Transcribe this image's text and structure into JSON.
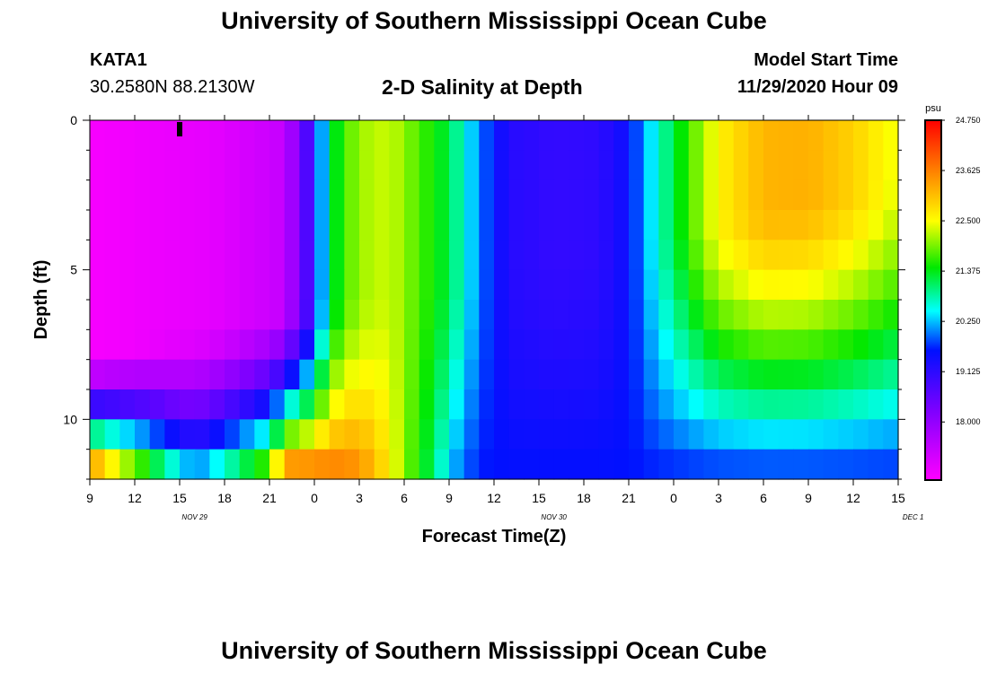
{
  "header": {
    "title": "University of Southern Mississippi Ocean Cube",
    "station": "KATA1",
    "coords": "30.2580N 88.2130W",
    "subtitle": "2-D Salinity at Depth",
    "model_start_label": "Model Start Time",
    "model_start_value": "11/29/2020 Hour 09"
  },
  "footer": {
    "title": "University of Southern Mississippi Ocean Cube"
  },
  "chart_data": {
    "type": "heatmap",
    "title": "2-D Salinity at Depth",
    "xlabel": "Forecast Time(Z)",
    "ylabel": "Depth (ft)",
    "x_ticks": [
      "9",
      "12",
      "15",
      "18",
      "21",
      "0",
      "3",
      "6",
      "9",
      "12",
      "15",
      "18",
      "21",
      "0",
      "3",
      "6",
      "9",
      "12",
      "15"
    ],
    "x_tick_hours": [
      9,
      12,
      15,
      18,
      21,
      24,
      27,
      30,
      33,
      36,
      39,
      42,
      45,
      48,
      51,
      54,
      57,
      60,
      63
    ],
    "date_labels": [
      {
        "text": "NOV 29",
        "hour": 16
      },
      {
        "text": "NOV 30",
        "hour": 40
      },
      {
        "text": "DEC 1",
        "hour": 64
      }
    ],
    "xlim_hours": [
      9,
      63
    ],
    "y_ticks": [
      "0",
      "5",
      "10"
    ],
    "y_tick_values": [
      0,
      5,
      10
    ],
    "ylim": [
      0,
      12
    ],
    "time_step_hours": 1,
    "depth_levels": [
      0.5,
      1.5,
      2.5,
      3.5,
      4.5,
      5.5,
      6.5,
      7.5,
      8.5,
      9.5,
      10.5,
      11.5
    ],
    "current_time_marker_hour": 15,
    "colorbar": {
      "unit": "psu",
      "min": 16.7,
      "max": 24.75,
      "tick_labels": [
        "24.750",
        "23.625",
        "22.500",
        "21.375",
        "20.250",
        "19.125",
        "18.000"
      ],
      "tick_values": [
        24.75,
        23.625,
        22.5,
        21.375,
        20.25,
        19.125,
        18.0
      ],
      "colors": {
        "magenta": "#ff00ff",
        "purple": "#8000ff",
        "blue": "#0010ff",
        "cyan": "#00ffff",
        "green": "#00e800",
        "yellow": "#ffff00",
        "orange": "#ff8000",
        "red": "#ff0000"
      }
    },
    "surface_salinity_psu": {
      "hours": [
        9,
        17,
        22,
        23,
        24,
        25,
        26,
        27,
        29,
        33,
        35,
        37,
        40,
        43,
        45,
        47,
        49,
        51,
        54,
        57,
        60,
        63
      ],
      "values": [
        16.8,
        17.0,
        17.4,
        18.3,
        19.2,
        21.1,
        21.7,
        22.1,
        22.3,
        21.2,
        20.0,
        19.2,
        19.05,
        19.1,
        19.5,
        20.7,
        21.7,
        22.6,
        23.15,
        23.2,
        22.9,
        22.4
      ]
    },
    "bottom_salinity_psu": {
      "hours": [
        9,
        11,
        13,
        14,
        16,
        18,
        21,
        22,
        24,
        27,
        29,
        30,
        32,
        33,
        35
      ],
      "values": [
        24.6,
        23.3,
        22.2,
        21.5,
        20.5,
        21.2,
        22.4,
        24.2,
        24.0,
        23.6,
        22.7,
        22.0,
        21.0,
        20.2,
        19.6
      ]
    }
  }
}
